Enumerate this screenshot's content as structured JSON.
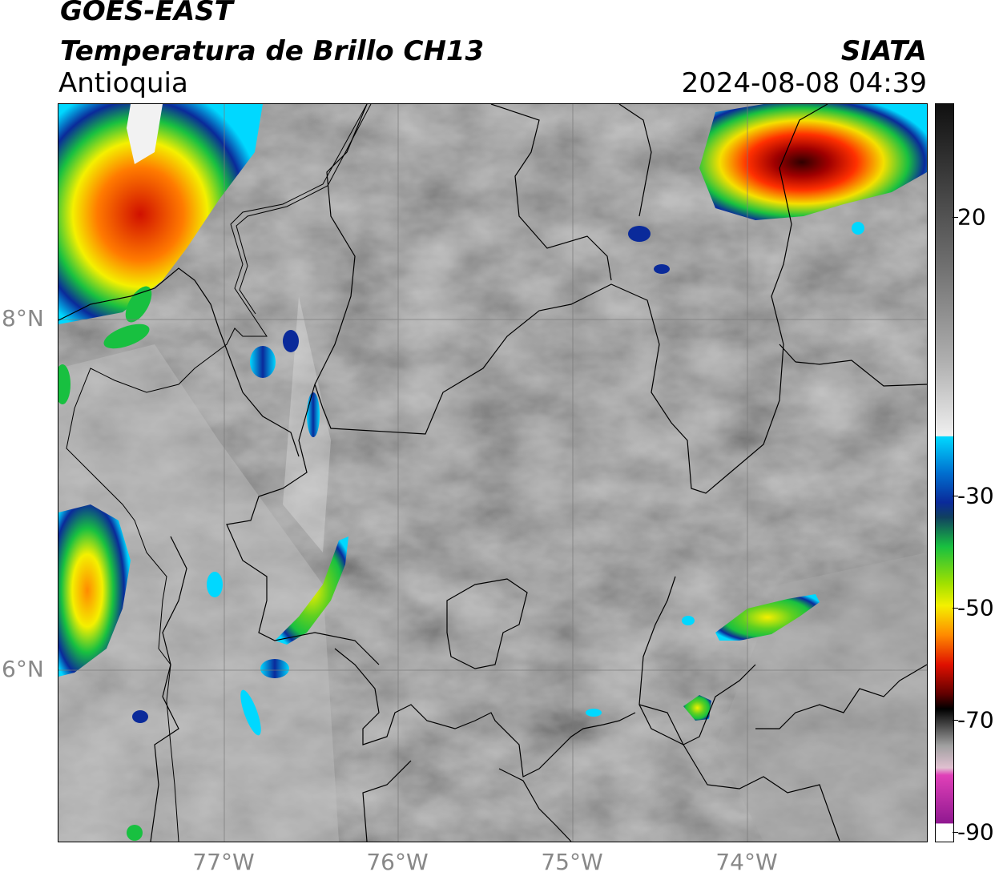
{
  "header": {
    "satellite": "GOES-EAST",
    "product": "Temperatura de Brillo CH13",
    "region": "Antioquia",
    "org": "SIATA",
    "timestamp": "2024-08-08 04:39"
  },
  "map": {
    "lat_labels": [
      "8°N",
      "6°N"
    ],
    "lon_labels": [
      "77°W",
      "76°W",
      "75°W",
      "74°W"
    ]
  },
  "colorbar": {
    "ticks": [
      "20",
      "-30",
      "-50",
      "-70",
      "-90"
    ],
    "colors": {
      "cyan": "#00d8ff",
      "blue": "#0a2a9a",
      "green": "#18c040",
      "yellow": "#f4f000",
      "orange": "#ff8a00",
      "red": "#e01000",
      "darkred": "#600000",
      "black": "#000000",
      "magenta": "#e040b8",
      "purple": "#901890",
      "white": "#ffffff"
    }
  }
}
